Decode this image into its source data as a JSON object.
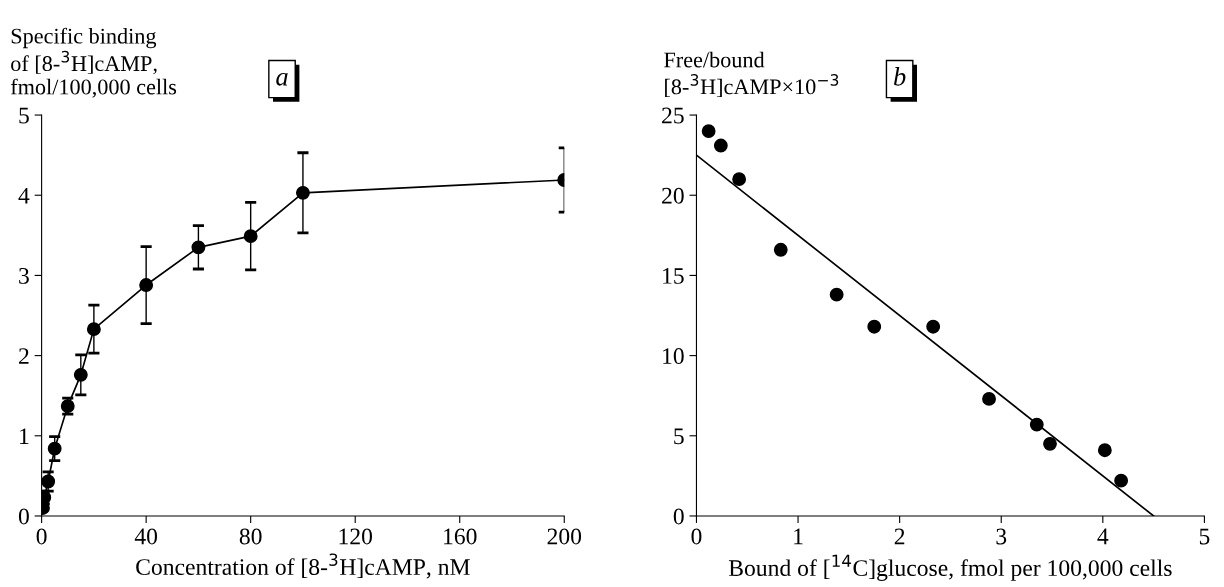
{
  "chart_data": [
    {
      "type": "line",
      "ylabel": "Specific binding\nof [8-$^{3}$H]cAMP,\nfmol/100,000 cells",
      "xlabel": "Concentration of [8-$^{3}$H]cAMP, nM",
      "annotations": [
        "a"
      ],
      "x": [
        0.5,
        1,
        2.5,
        5,
        10,
        15,
        20,
        40,
        60,
        80,
        100,
        200
      ],
      "series": [
        {
          "color": "#000000",
          "values": [
            0.1,
            0.23,
            0.43,
            0.84,
            1.37,
            1.76,
            2.33,
            2.88,
            3.35,
            3.49,
            4.03,
            4.19
          ],
          "errors": [
            null,
            0.08,
            0.12,
            0.15,
            0.1,
            0.25,
            0.3,
            0.48,
            0.27,
            0.42,
            0.5,
            0.4
          ]
        }
      ],
      "marker": "circle",
      "line_style": "solid",
      "grid": false,
      "legend": false,
      "xlim": [
        0,
        200
      ],
      "xticks": [
        0,
        40,
        80,
        120,
        160,
        200
      ],
      "ylim": [
        0,
        5
      ],
      "yticks": [
        0,
        1,
        2,
        3,
        4,
        5
      ]
    },
    {
      "type": "scatter",
      "ylabel": "Free/bound\n[8-$^{3}$H]cAMP×10$^{−3}$",
      "xlabel": "Bound of [$^{14}$C]glucose, fmol per 100,000 cells",
      "annotations": [
        "b"
      ],
      "x": [
        0.12,
        0.24,
        0.42,
        0.83,
        1.38,
        1.75,
        2.33,
        2.88,
        3.35,
        3.48,
        4.02,
        4.18
      ],
      "series": [
        {
          "color": "#000000",
          "values": [
            24.0,
            23.1,
            21.0,
            16.6,
            13.8,
            11.8,
            11.8,
            7.3,
            5.7,
            4.5,
            4.1,
            2.2
          ],
          "marker": "circle"
        },
        {
          "type": "line",
          "color": "#000000",
          "x": [
            0,
            4.5
          ],
          "values": [
            22.5,
            0
          ],
          "marker": "none",
          "line_style": "solid"
        }
      ],
      "grid": false,
      "legend": false,
      "xlim": [
        0,
        5
      ],
      "xticks": [
        0,
        1,
        2,
        3,
        4,
        5
      ],
      "ylim": [
        0,
        25
      ],
      "yticks": [
        0,
        5,
        10,
        15,
        20,
        25
      ]
    }
  ]
}
